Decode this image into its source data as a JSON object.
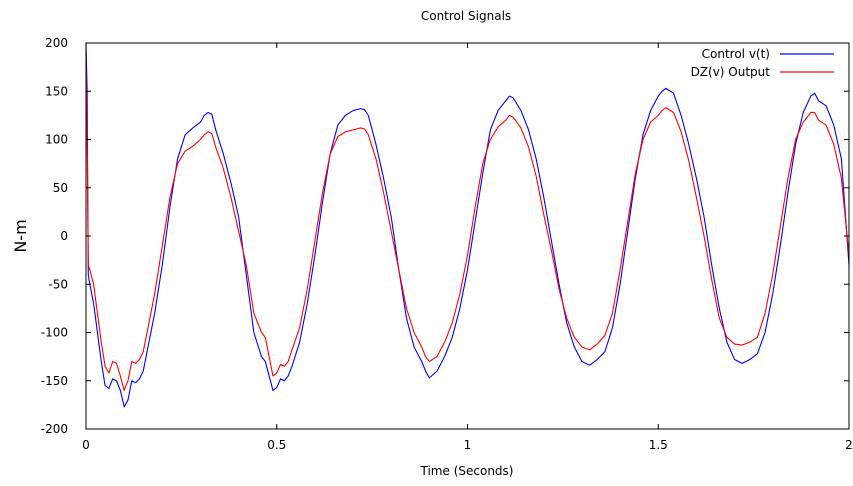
{
  "chart_data": {
    "type": "line",
    "title": "Control Signals",
    "xlabel": "Time (Seconds)",
    "ylabel": "N-m",
    "xlim": [
      0,
      2
    ],
    "ylim": [
      -200,
      200
    ],
    "xticks": [
      0,
      0.5,
      1,
      1.5,
      2
    ],
    "xtick_labels": [
      "0",
      "0.5",
      "1",
      "1.5",
      "2"
    ],
    "yticks": [
      -200,
      -150,
      -100,
      -50,
      0,
      50,
      100,
      150,
      200
    ],
    "ytick_labels": [
      "-200",
      "-150",
      "-100",
      "-50",
      "0",
      "50",
      "100",
      "150",
      "200"
    ],
    "grid": false,
    "legend_position": "top-right",
    "series": [
      {
        "name": "Control v(t)",
        "color": "#0000ff",
        "x": [
          0,
          0.003,
          0.006,
          0.01,
          0.02,
          0.03,
          0.04,
          0.05,
          0.06,
          0.07,
          0.08,
          0.09,
          0.1,
          0.11,
          0.12,
          0.13,
          0.14,
          0.15,
          0.16,
          0.18,
          0.2,
          0.22,
          0.24,
          0.26,
          0.28,
          0.3,
          0.31,
          0.32,
          0.33,
          0.34,
          0.36,
          0.38,
          0.4,
          0.42,
          0.44,
          0.46,
          0.47,
          0.48,
          0.49,
          0.5,
          0.51,
          0.52,
          0.53,
          0.54,
          0.56,
          0.58,
          0.6,
          0.62,
          0.64,
          0.66,
          0.68,
          0.7,
          0.72,
          0.73,
          0.74,
          0.76,
          0.78,
          0.8,
          0.82,
          0.84,
          0.86,
          0.88,
          0.89,
          0.9,
          0.92,
          0.94,
          0.96,
          0.98,
          1.0,
          1.02,
          1.04,
          1.06,
          1.08,
          1.1,
          1.11,
          1.12,
          1.14,
          1.16,
          1.18,
          1.2,
          1.22,
          1.24,
          1.26,
          1.28,
          1.3,
          1.32,
          1.34,
          1.36,
          1.38,
          1.4,
          1.42,
          1.44,
          1.46,
          1.48,
          1.5,
          1.51,
          1.52,
          1.54,
          1.56,
          1.58,
          1.6,
          1.62,
          1.64,
          1.66,
          1.68,
          1.7,
          1.72,
          1.74,
          1.76,
          1.78,
          1.8,
          1.82,
          1.84,
          1.86,
          1.88,
          1.9,
          1.91,
          1.92,
          1.94,
          1.96,
          1.98,
          2.0
        ],
        "y": [
          200,
          150,
          -40,
          -50,
          -70,
          -100,
          -130,
          -155,
          -158,
          -148,
          -150,
          -160,
          -177,
          -170,
          -150,
          -152,
          -148,
          -140,
          -120,
          -80,
          -30,
          30,
          80,
          105,
          112,
          118,
          125,
          128,
          126,
          110,
          85,
          55,
          20,
          -40,
          -100,
          -125,
          -130,
          -145,
          -160,
          -157,
          -148,
          -150,
          -145,
          -135,
          -110,
          -70,
          -20,
          35,
          85,
          115,
          125,
          130,
          132,
          131,
          125,
          95,
          60,
          20,
          -35,
          -85,
          -115,
          -130,
          -140,
          -147,
          -140,
          -125,
          -105,
          -75,
          -35,
          15,
          65,
          110,
          130,
          140,
          145,
          143,
          130,
          110,
          80,
          40,
          -5,
          -50,
          -90,
          -115,
          -130,
          -134,
          -128,
          -120,
          -95,
          -50,
          5,
          60,
          105,
          130,
          145,
          150,
          153,
          148,
          125,
          95,
          60,
          20,
          -30,
          -75,
          -110,
          -128,
          -132,
          -128,
          -122,
          -100,
          -60,
          -10,
          45,
          95,
          128,
          145,
          148,
          140,
          135,
          115,
          80,
          -30
        ]
      },
      {
        "name": "DZ(v) Output",
        "color": "#ff0000",
        "x": [
          0,
          0.003,
          0.006,
          0.01,
          0.02,
          0.03,
          0.04,
          0.05,
          0.06,
          0.07,
          0.08,
          0.09,
          0.1,
          0.11,
          0.12,
          0.13,
          0.14,
          0.15,
          0.16,
          0.18,
          0.2,
          0.22,
          0.24,
          0.26,
          0.28,
          0.3,
          0.31,
          0.32,
          0.33,
          0.34,
          0.36,
          0.38,
          0.4,
          0.42,
          0.44,
          0.46,
          0.47,
          0.48,
          0.49,
          0.5,
          0.51,
          0.52,
          0.53,
          0.54,
          0.56,
          0.58,
          0.6,
          0.62,
          0.64,
          0.66,
          0.68,
          0.7,
          0.72,
          0.73,
          0.74,
          0.76,
          0.78,
          0.8,
          0.82,
          0.84,
          0.86,
          0.88,
          0.89,
          0.9,
          0.92,
          0.94,
          0.96,
          0.98,
          1.0,
          1.02,
          1.04,
          1.06,
          1.08,
          1.1,
          1.11,
          1.12,
          1.14,
          1.16,
          1.18,
          1.2,
          1.22,
          1.24,
          1.26,
          1.28,
          1.3,
          1.32,
          1.34,
          1.36,
          1.38,
          1.4,
          1.42,
          1.44,
          1.46,
          1.48,
          1.5,
          1.51,
          1.52,
          1.54,
          1.56,
          1.58,
          1.6,
          1.62,
          1.64,
          1.66,
          1.68,
          1.7,
          1.72,
          1.74,
          1.76,
          1.78,
          1.8,
          1.82,
          1.84,
          1.86,
          1.88,
          1.9,
          1.91,
          1.92,
          1.94,
          1.96,
          1.98,
          2.0
        ],
        "y": [
          190,
          100,
          -30,
          -35,
          -50,
          -80,
          -110,
          -135,
          -142,
          -130,
          -132,
          -145,
          -160,
          -150,
          -130,
          -132,
          -128,
          -120,
          -100,
          -60,
          -10,
          40,
          75,
          88,
          93,
          100,
          105,
          108,
          106,
          92,
          70,
          40,
          5,
          -30,
          -80,
          -100,
          -105,
          -125,
          -145,
          -142,
          -133,
          -135,
          -130,
          -118,
          -95,
          -55,
          -5,
          45,
          85,
          103,
          108,
          110,
          112,
          111,
          105,
          80,
          45,
          5,
          -35,
          -75,
          -100,
          -115,
          -125,
          -130,
          -125,
          -110,
          -90,
          -60,
          -20,
          30,
          75,
          100,
          113,
          120,
          125,
          123,
          112,
          92,
          62,
          22,
          -15,
          -55,
          -85,
          -105,
          -115,
          -118,
          -112,
          -103,
          -80,
          -35,
          15,
          65,
          100,
          118,
          125,
          130,
          133,
          128,
          108,
          78,
          40,
          0,
          -45,
          -85,
          -105,
          -112,
          -113,
          -110,
          -105,
          -80,
          -40,
          10,
          60,
          100,
          118,
          128,
          128,
          120,
          115,
          95,
          60,
          -20
        ]
      }
    ]
  }
}
